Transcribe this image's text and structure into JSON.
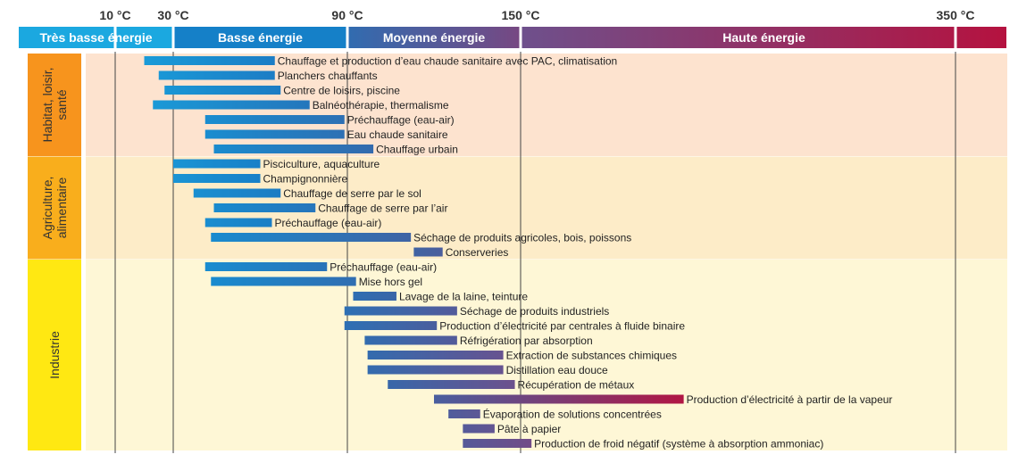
{
  "chart_data": {
    "type": "bar",
    "orientation": "horizontal-range",
    "x_unit": "°C",
    "temperature_markers": [
      {
        "value": 10,
        "label": "10 °C"
      },
      {
        "value": 30,
        "label": "30 °C"
      },
      {
        "value": 90,
        "label": "90 °C"
      },
      {
        "value": 150,
        "label": "150 °C"
      },
      {
        "value": 350,
        "label": "350 °C"
      }
    ],
    "energy_bands": [
      {
        "label": "Très basse énergie",
        "from": 0,
        "to": 30,
        "color": "#1ba8e0"
      },
      {
        "label": "Basse énergie",
        "from": 30,
        "to": 90,
        "color": "#1580c8"
      },
      {
        "label": "Moyenne énergie",
        "from": 90,
        "to": 150,
        "color": "#3c66a8"
      },
      {
        "label": "Haute énergie",
        "from": 150,
        "to": 360,
        "color": "#b5123f"
      }
    ],
    "sectors": [
      {
        "label": "Habitat, loisir, santé",
        "label_lines": [
          "Habitat, loisir,",
          "santé"
        ],
        "color": "#f7941d",
        "bg": "#fde3cf",
        "items": [
          {
            "label": "Chauffage et production d’eau chaude sanitaire avec PAC, climatisation",
            "min": 20,
            "max": 65
          },
          {
            "label": "Planchers chauffants",
            "min": 25,
            "max": 65
          },
          {
            "label": "Centre de loisirs, piscine",
            "min": 27,
            "max": 67
          },
          {
            "label": "Balnéothérapie, thermalisme",
            "min": 23,
            "max": 77
          },
          {
            "label": "Préchauffage (eau-air)",
            "min": 41,
            "max": 89
          },
          {
            "label": "Eau chaude sanitaire",
            "min": 41,
            "max": 89
          },
          {
            "label": "Chauffage urbain",
            "min": 44,
            "max": 99
          }
        ]
      },
      {
        "label": "Agriculture, alimentaire",
        "label_lines": [
          "Agriculture,",
          "alimentaire"
        ],
        "color": "#f9ae1c",
        "bg": "#fdecc8",
        "items": [
          {
            "label": "Pisciculture, aquaculture",
            "min": 30,
            "max": 60
          },
          {
            "label": "Champignonnière",
            "min": 30,
            "max": 60
          },
          {
            "label": "Chauffage de serre par le sol",
            "min": 37,
            "max": 67
          },
          {
            "label": "Chauffage de serre par l’air",
            "min": 44,
            "max": 79
          },
          {
            "label": "Préchauffage (eau-air)",
            "min": 41,
            "max": 64
          },
          {
            "label": "Séchage de produits agricoles, bois, poissons",
            "min": 43,
            "max": 112
          },
          {
            "label": "Conserveries",
            "min": 113,
            "max": 123
          }
        ]
      },
      {
        "label": "Industrie",
        "label_lines": [
          "Industrie"
        ],
        "color": "#ffe812",
        "bg": "#fef7d6",
        "items": [
          {
            "label": "Préchauffage (eau-air)",
            "min": 41,
            "max": 83
          },
          {
            "label": "Mise hors gel",
            "min": 43,
            "max": 93
          },
          {
            "label": "Lavage de la laine, teinture",
            "min": 92,
            "max": 107
          },
          {
            "label": "Séchage de produits industriels",
            "min": 89,
            "max": 128
          },
          {
            "label": "Production d’électricité par centrales à fluide binaire",
            "min": 89,
            "max": 121
          },
          {
            "label": "Réfrigération par absorption",
            "min": 96,
            "max": 128
          },
          {
            "label": "Extraction de substances chimiques",
            "min": 97,
            "max": 144
          },
          {
            "label": "Distillation eau douce",
            "min": 97,
            "max": 144
          },
          {
            "label": "Récupération de métaux",
            "min": 104,
            "max": 148
          },
          {
            "label": "Production d’électricité à partir de la vapeur",
            "min": 120,
            "max": 225
          },
          {
            "label": "Évaporation de solutions concentrées",
            "min": 125,
            "max": 136
          },
          {
            "label": "Pâte à papier",
            "min": 130,
            "max": 141
          },
          {
            "label": "Production de froid négatif (système à absorption ammoniac)",
            "min": 130,
            "max": 155
          }
        ]
      }
    ]
  }
}
